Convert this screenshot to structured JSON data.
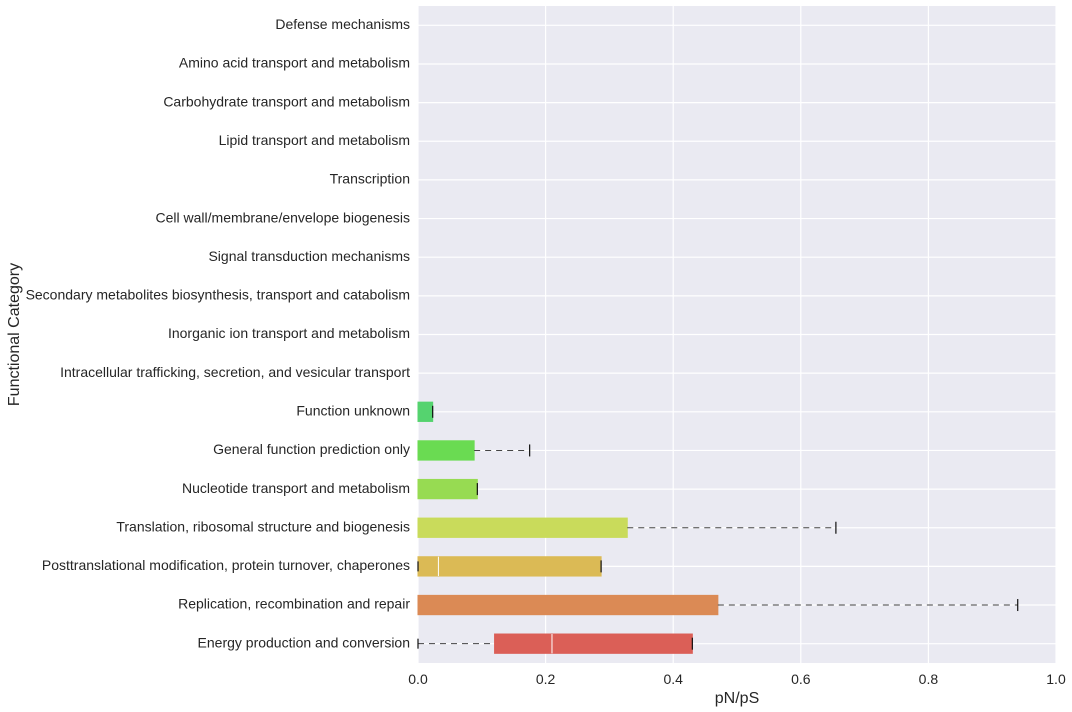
{
  "chart_data": {
    "type": "bar",
    "orientation": "horizontal",
    "title": "",
    "xlabel": "pN/pS",
    "ylabel": "Functional Category",
    "xlim": [
      0,
      1.0
    ],
    "xticks": [
      "0.0",
      "0.2",
      "0.4",
      "0.6",
      "0.8",
      "1.0"
    ],
    "grid": true,
    "background_color": "#EAEAF2",
    "grid_color": "#FFFFFF",
    "whisker_color": "#444444",
    "categories": [
      {
        "name": "Defense mechanisms",
        "q1": 0,
        "median": 0,
        "q3": 0,
        "whisker_low": 0,
        "whisker_high": 0,
        "color": "#6ADB5B"
      },
      {
        "name": "Amino acid transport and metabolism",
        "q1": 0,
        "median": 0,
        "q3": 0,
        "whisker_low": 0,
        "whisker_high": 0,
        "color": "#6ADB5B"
      },
      {
        "name": "Carbohydrate transport and metabolism",
        "q1": 0,
        "median": 0,
        "q3": 0,
        "whisker_low": 0,
        "whisker_high": 0,
        "color": "#6ADB5B"
      },
      {
        "name": "Lipid transport and metabolism",
        "q1": 0,
        "median": 0,
        "q3": 0,
        "whisker_low": 0,
        "whisker_high": 0,
        "color": "#6ADB5B"
      },
      {
        "name": "Transcription",
        "q1": 0,
        "median": 0,
        "q3": 0,
        "whisker_low": 0,
        "whisker_high": 0,
        "color": "#6ADB5B"
      },
      {
        "name": "Cell wall/membrane/envelope biogenesis",
        "q1": 0,
        "median": 0,
        "q3": 0,
        "whisker_low": 0,
        "whisker_high": 0,
        "color": "#6ADB5B"
      },
      {
        "name": "Signal transduction mechanisms",
        "q1": 0,
        "median": 0,
        "q3": 0,
        "whisker_low": 0,
        "whisker_high": 0,
        "color": "#6ADB5B"
      },
      {
        "name": "Secondary metabolites biosynthesis, transport and catabolism",
        "q1": 0,
        "median": 0,
        "q3": 0,
        "whisker_low": 0,
        "whisker_high": 0,
        "color": "#6ADB5B"
      },
      {
        "name": "Inorganic ion transport and metabolism",
        "q1": 0,
        "median": 0,
        "q3": 0,
        "whisker_low": 0,
        "whisker_high": 0,
        "color": "#6ADB5B"
      },
      {
        "name": "Intracellular trafficking, secretion, and vesicular transport",
        "q1": 0,
        "median": 0,
        "q3": 0,
        "whisker_low": 0,
        "whisker_high": 0,
        "color": "#6ADB5B"
      },
      {
        "name": "Function unknown",
        "q1": 0,
        "median": 0.023,
        "q3": 0.023,
        "whisker_low": 0,
        "whisker_high": 0.023,
        "color": "#55D36F"
      },
      {
        "name": "General function prediction only",
        "q1": 0,
        "median": 0.088,
        "q3": 0.088,
        "whisker_low": 0,
        "whisker_high": 0.175,
        "color": "#6ADB52"
      },
      {
        "name": "Nucleotide transport and metabolism",
        "q1": 0,
        "median": 0.093,
        "q3": 0.093,
        "whisker_low": 0,
        "whisker_high": 0.093,
        "color": "#97DB52"
      },
      {
        "name": "Translation, ribosomal structure and biogenesis",
        "q1": 0,
        "median": 0.328,
        "q3": 0.328,
        "whisker_low": 0,
        "whisker_high": 0.655,
        "color": "#C9DB5B"
      },
      {
        "name": "Posttranslational modification, protein turnover, chaperones",
        "q1": 0,
        "median": 0.032,
        "q3": 0.287,
        "whisker_low": 0,
        "whisker_high": 0.287,
        "color": "#DBBA55"
      },
      {
        "name": "Replication, recombination and repair",
        "q1": 0,
        "median": 0.47,
        "q3": 0.47,
        "whisker_low": 0,
        "whisker_high": 0.94,
        "color": "#DB8A55"
      },
      {
        "name": "Energy production and conversion",
        "q1": 0.12,
        "median": 0.21,
        "q3": 0.43,
        "whisker_low": 0,
        "whisker_high": 0.43,
        "color": "#DB5F57"
      }
    ]
  }
}
